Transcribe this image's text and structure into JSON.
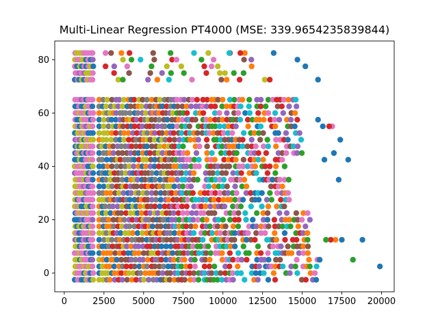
{
  "chart_data": {
    "type": "scatter",
    "title": "Multi-Linear Regression PT4000 (MSE: 339.9654235839844)",
    "xlabel": "",
    "ylabel": "",
    "xlim": [
      -600,
      20800
    ],
    "ylim": [
      -7,
      87
    ],
    "xticks": [
      0,
      2500,
      5000,
      7500,
      10000,
      12500,
      15000,
      17500,
      20000
    ],
    "xtick_labels": [
      "0",
      "2500",
      "5000",
      "7500",
      "10000",
      "12500",
      "15000",
      "17500",
      "20000"
    ],
    "yticks": [
      0,
      20,
      40,
      60,
      80
    ],
    "ytick_labels": [
      "0",
      "20",
      "40",
      "60",
      "80"
    ],
    "grid": false,
    "legend": "none",
    "colors": [
      "#1f77b4",
      "#ff7f0e",
      "#2ca02c",
      "#d62728",
      "#9467bd",
      "#8c564b",
      "#e377c2",
      "#7f7f7f",
      "#bcbd22",
      "#17becf"
    ],
    "point_rows_y": [
      -2.5,
      0,
      2.5,
      5,
      7.5,
      10,
      12.5,
      15,
      17.5,
      20,
      22.5,
      25,
      27.5,
      30,
      32.5,
      35,
      37.5,
      40,
      42.5,
      45,
      47.5,
      50,
      52.5,
      55,
      57.5,
      60,
      62.5,
      65
    ],
    "high_rows_y": [
      72.5,
      75,
      77.5,
      80,
      82.5
    ],
    "highlight_points": [
      {
        "x": 19900,
        "y": 2.5,
        "series": 0
      },
      {
        "x": 18800,
        "y": 12.5,
        "series": 0
      },
      {
        "x": 18200,
        "y": 5,
        "series": 2
      },
      {
        "x": 17900,
        "y": 42.5,
        "series": 0
      },
      {
        "x": 17500,
        "y": 12.5,
        "series": 0
      },
      {
        "x": 17400,
        "y": 50,
        "series": 0
      },
      {
        "x": 17300,
        "y": 35,
        "series": 0
      },
      {
        "x": 17100,
        "y": 12.5,
        "series": 1
      },
      {
        "x": 17000,
        "y": 45,
        "series": 0
      },
      {
        "x": 16900,
        "y": 55,
        "series": 6
      },
      {
        "x": 16800,
        "y": 12.5,
        "series": 3
      },
      {
        "x": 16700,
        "y": 55,
        "series": 3
      },
      {
        "x": 16500,
        "y": 12.5,
        "series": 2
      },
      {
        "x": 16400,
        "y": 42.5,
        "series": 0
      },
      {
        "x": 16300,
        "y": 55,
        "series": 0
      },
      {
        "x": 16100,
        "y": 5,
        "series": 0
      },
      {
        "x": 16000,
        "y": 57.5,
        "series": 0
      },
      {
        "x": 16000,
        "y": 72.5,
        "series": 0
      },
      {
        "x": 15200,
        "y": 77.5,
        "series": 0
      },
      {
        "x": 14700,
        "y": 80,
        "series": 0
      },
      {
        "x": 13200,
        "y": 82.5,
        "series": 0
      },
      {
        "x": 11100,
        "y": 82.5,
        "series": 3
      },
      {
        "x": 10400,
        "y": 82.5,
        "series": 9
      },
      {
        "x": 6700,
        "y": 82.5,
        "series": 2
      }
    ]
  }
}
